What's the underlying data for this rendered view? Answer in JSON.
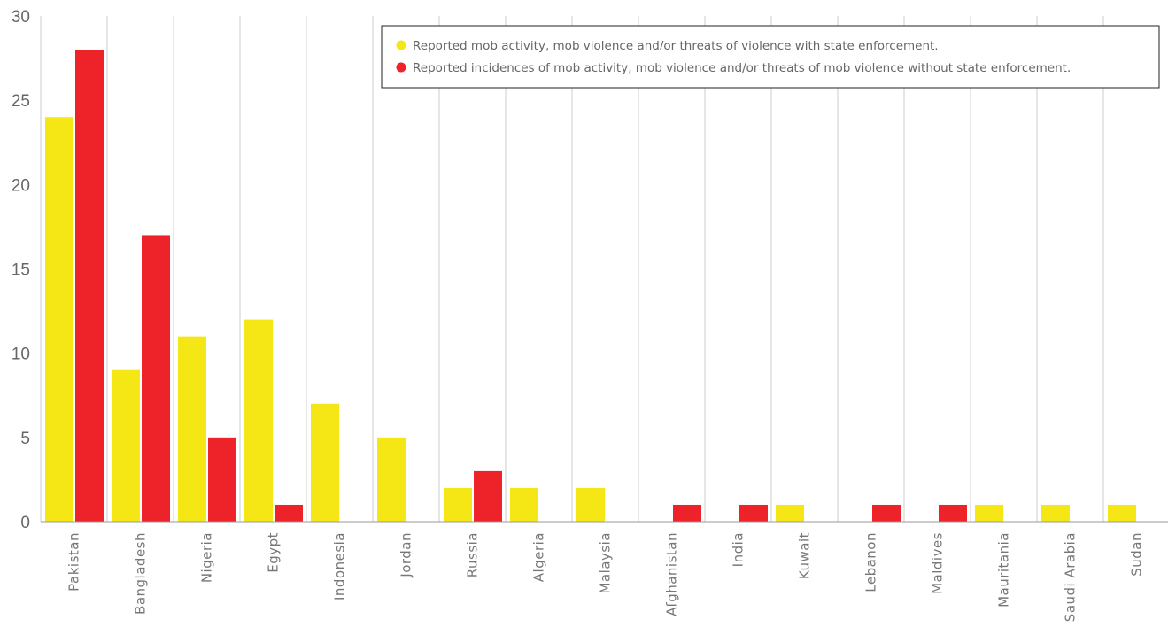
{
  "chart_data": {
    "type": "bar",
    "categories": [
      "Pakistan",
      "Bangladesh",
      "Nigeria",
      "Egypt",
      "Indonesia",
      "Jordan",
      "Russia",
      "Algeria",
      "Malaysia",
      "Afghanistan",
      "India",
      "Kuwait",
      "Lebanon",
      "Maldives",
      "Mauritania",
      "Saudi Arabia",
      "Sudan"
    ],
    "series": [
      {
        "name": "Reported mob activity, mob violence and/or threats of violence with state enforcement.",
        "color": "#F5E616",
        "values": [
          24,
          9,
          11,
          12,
          7,
          5,
          2,
          2,
          2,
          0,
          0,
          1,
          0,
          0,
          1,
          1,
          1
        ]
      },
      {
        "name": "Reported incidences of mob activity, mob violence and/or threats of mob violence without state enforcement.",
        "color": "#EE2229",
        "values": [
          28,
          17,
          5,
          1,
          0,
          0,
          3,
          0,
          0,
          1,
          1,
          0,
          1,
          1,
          0,
          0,
          0
        ]
      }
    ],
    "ylim": [
      0,
      30
    ],
    "yticks": [
      0,
      5,
      10,
      15,
      20,
      25,
      30
    ],
    "grid": "vertical",
    "legend_position": "top-right"
  }
}
